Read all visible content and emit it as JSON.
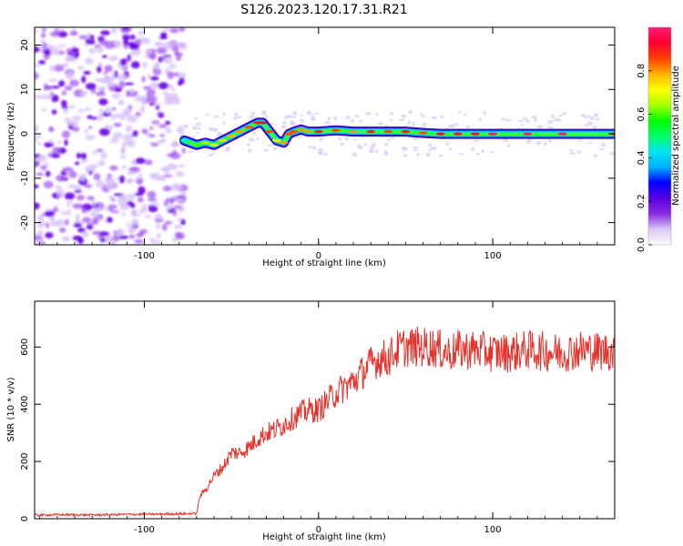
{
  "figure": {
    "title": "S126.2023.120.17.31.R21"
  },
  "colorbar": {
    "label": "Normalized spectral amplitude",
    "ticks": [
      "0.0",
      "0.2",
      "0.4",
      "0.6",
      "0.8"
    ],
    "colormap": [
      "#ffffff",
      "#d9c6f5",
      "#8a2be2",
      "#5a00e0",
      "#0000ff",
      "#00b0ff",
      "#00e5ee",
      "#00ff66",
      "#00ff00",
      "#aaff00",
      "#ffff00",
      "#ffb000",
      "#ff4000",
      "#ff0033",
      "#ff1a75"
    ]
  },
  "chart_data": [
    {
      "type": "heatmap",
      "xlabel": "Height of straight line (km)",
      "ylabel": "Frequency (Hz)",
      "xlim": [
        -163,
        170
      ],
      "ylim": [
        -25,
        24
      ],
      "xticks": [
        "-100",
        "0",
        "100"
      ],
      "yticks": [
        "-20",
        "-10",
        "0",
        "10",
        "20"
      ],
      "noise_region_x": [
        -163,
        -77
      ],
      "signal_track": {
        "x": [
          -77,
          -70,
          -65,
          -60,
          -55,
          -50,
          -45,
          -40,
          -35,
          -32,
          -28,
          -24,
          -20,
          -17,
          -14,
          -10,
          -6,
          0,
          10,
          20,
          30,
          40,
          50,
          60,
          70,
          80,
          90,
          100,
          120,
          140,
          170
        ],
        "freq": [
          -1.5,
          -2.5,
          -2.0,
          -2.5,
          -1.5,
          -0.5,
          0.5,
          1.5,
          2.5,
          2.5,
          0.5,
          -1.5,
          -2.0,
          0.0,
          0.5,
          1.0,
          0.5,
          0.5,
          0.8,
          0.5,
          0.5,
          0.5,
          0.5,
          0.2,
          0.0,
          0.0,
          0.0,
          0.0,
          0.0,
          0.0,
          0.0
        ],
        "amplitude": [
          0.45,
          0.6,
          0.65,
          0.7,
          0.75,
          0.78,
          0.8,
          0.85,
          0.9,
          0.95,
          0.85,
          0.7,
          0.8,
          0.85,
          0.85,
          0.8,
          0.8,
          0.9,
          0.85,
          0.8,
          0.9,
          0.85,
          0.9,
          0.85,
          0.95,
          0.95,
          0.95,
          1.0,
          1.0,
          1.0,
          1.0
        ]
      }
    },
    {
      "type": "line",
      "xlabel": "Height of straight line (km)",
      "ylabel": "SNR (10 * v/v)",
      "xlim": [
        -163,
        170
      ],
      "ylim": [
        0,
        760
      ],
      "xticks": [
        "-100",
        "0",
        "100"
      ],
      "yticks": [
        "0",
        "200",
        "400",
        "600"
      ],
      "series": [
        {
          "color": "#e8302a",
          "x": [
            -163,
            -150,
            -130,
            -110,
            -90,
            -70,
            -68,
            -65,
            -60,
            -55,
            -50,
            -45,
            -40,
            -35,
            -30,
            -25,
            -20,
            -15,
            -10,
            -5,
            0,
            5,
            10,
            15,
            20,
            25,
            30,
            35,
            40,
            45,
            50,
            55,
            60,
            65,
            70,
            75,
            80,
            90,
            100,
            110,
            120,
            130,
            140,
            150,
            160,
            170
          ],
          "y": [
            12,
            14,
            13,
            15,
            16,
            18,
            80,
            100,
            150,
            180,
            230,
            230,
            250,
            280,
            300,
            310,
            330,
            350,
            370,
            380,
            380,
            410,
            440,
            460,
            480,
            510,
            540,
            560,
            560,
            590,
            600,
            600,
            600,
            600,
            590,
            580,
            590,
            590,
            580,
            580,
            590,
            585,
            580,
            590,
            585,
            585
          ]
        }
      ]
    }
  ]
}
